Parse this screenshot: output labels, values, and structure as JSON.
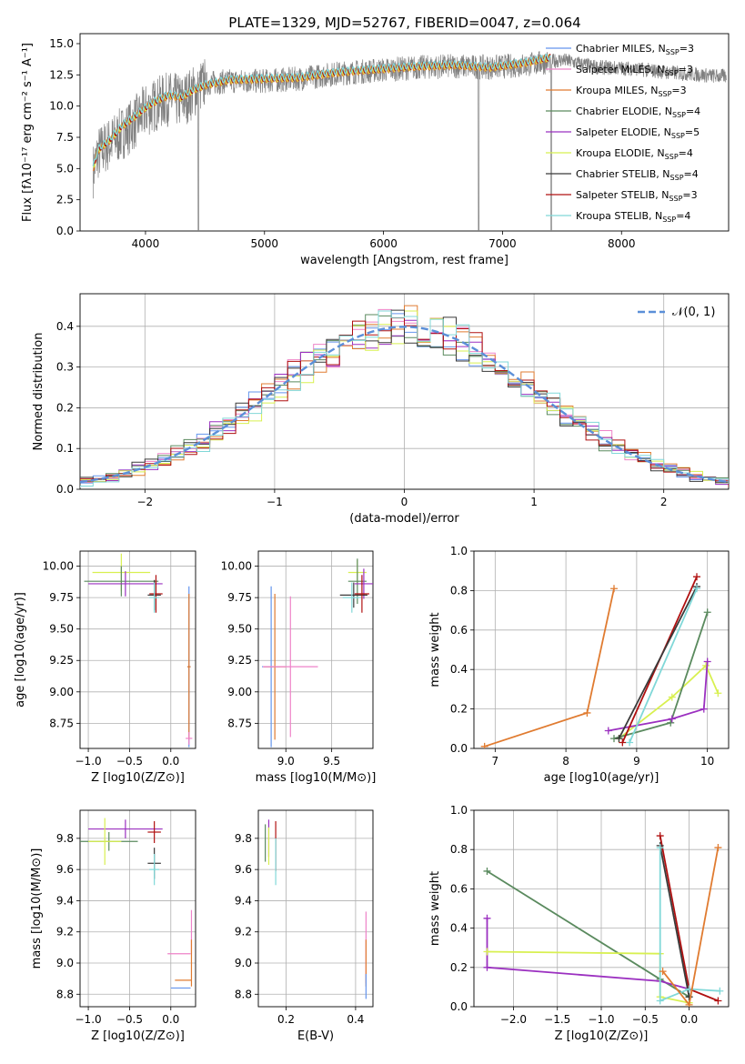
{
  "colors": {
    "Chabrier MILES": "#6495ed",
    "Salpeter MILES": "#ee82c8",
    "Kroupa MILES": "#e07b30",
    "Chabrier ELODIE": "#5a8a5e",
    "Salpeter ELODIE": "#9b30c0",
    "Kroupa ELODIE": "#d8f050",
    "Chabrier STELIB": "#3a3a3a",
    "Salpeter STELIB": "#b01010",
    "Kroupa STELIB": "#80d8d8"
  },
  "chart_data": [
    {
      "type": "line",
      "title": "PLATE=1329, MJD=52767, FIBERID=0047, z=0.064",
      "xlabel": "wavelength [Angstrom, rest frame]",
      "ylabel": "Flux [fλ10⁻¹⁷ erg cm⁻² s⁻¹ A⁻¹]",
      "xlim": [
        3450,
        8900
      ],
      "ylim": [
        0,
        15.8
      ],
      "xticks": [
        "4000",
        "5000",
        "6000",
        "7000",
        "8000"
      ],
      "yticks": [
        "0.0",
        "2.5",
        "5.0",
        "7.5",
        "10.0",
        "12.5",
        "15.0"
      ],
      "grid": false,
      "legend_position": "top-right",
      "legend": [
        {
          "label": "Chabrier MILES, N",
          "sub": "SSP",
          "tail": "=3",
          "color": "Chabrier MILES"
        },
        {
          "label": "Salpeter MILES, N",
          "sub": "SSP",
          "tail": "=3",
          "color": "Salpeter MILES"
        },
        {
          "label": "Kroupa MILES, N",
          "sub": "SSP",
          "tail": "=3",
          "color": "Kroupa MILES"
        },
        {
          "label": "Chabrier ELODIE, N",
          "sub": "SSP",
          "tail": "=4",
          "color": "Chabrier ELODIE"
        },
        {
          "label": "Salpeter ELODIE, N",
          "sub": "SSP",
          "tail": "=5",
          "color": "Salpeter ELODIE"
        },
        {
          "label": "Kroupa ELODIE, N",
          "sub": "SSP",
          "tail": "=4",
          "color": "Kroupa ELODIE"
        },
        {
          "label": "Chabrier STELIB, N",
          "sub": "SSP",
          "tail": "=4",
          "color": "Chabrier STELIB"
        },
        {
          "label": "Salpeter STELIB, N",
          "sub": "SSP",
          "tail": "=3",
          "color": "Salpeter STELIB"
        },
        {
          "label": "Kroupa STELIB, N",
          "sub": "SSP",
          "tail": "=4",
          "color": "Kroupa STELIB"
        }
      ],
      "data_trend": {
        "x": [
          3560,
          3600,
          3700,
          3800,
          3900,
          4000,
          4100,
          4200,
          4300,
          4400,
          4500,
          4700,
          5000,
          5300,
          5600,
          6000,
          6300,
          6600,
          6900,
          7200,
          7500,
          7800,
          8100,
          8400,
          8800
        ],
        "y": [
          4.8,
          6.2,
          7.0,
          7.8,
          8.6,
          9.6,
          10.2,
          10.6,
          10.4,
          11.1,
          11.8,
          12.0,
          12.0,
          12.2,
          12.6,
          12.9,
          13.1,
          13.2,
          13.1,
          13.3,
          13.7,
          13.1,
          13.0,
          12.7,
          12.4
        ]
      },
      "model_trend": {
        "x": [
          3560,
          3600,
          3700,
          3800,
          3900,
          4000,
          4100,
          4200,
          4300,
          4400,
          4500,
          4700,
          5000,
          5300,
          5600,
          6000,
          6300,
          6600,
          6900,
          7200,
          7400
        ],
        "y": [
          5.0,
          6.5,
          7.3,
          8.4,
          9.1,
          9.9,
          10.5,
          10.9,
          10.7,
          11.3,
          11.7,
          12.1,
          12.2,
          12.3,
          12.7,
          13.0,
          13.2,
          13.3,
          13.1,
          13.5,
          13.9
        ]
      }
    },
    {
      "type": "histogram",
      "xlabel": "(data-model)/error",
      "ylabel": "Normed distribution",
      "xlim": [
        -2.5,
        2.5
      ],
      "ylim": [
        0,
        0.48
      ],
      "xticks": [
        "−2",
        "−1",
        "0",
        "1",
        "2"
      ],
      "yticks": [
        "0.0",
        "0.1",
        "0.2",
        "0.3",
        "0.4"
      ],
      "grid": true,
      "legend_position": "top-right",
      "legend": [
        "𝒩(0, 1)"
      ],
      "bin_width": 0.1
    },
    {
      "type": "errorbar",
      "xlabel": "Z [log10(Z/Z⊙)]",
      "ylabel": "age  [log10(age/yr)]",
      "xlim": [
        -1.1,
        0.3
      ],
      "ylim": [
        8.55,
        10.12
      ],
      "xticks": [
        "−1.0",
        "−0.5",
        "0.0"
      ],
      "yticks": [
        "8.75",
        "9.00",
        "9.25",
        "9.50",
        "9.75",
        "10.00"
      ],
      "points": [
        {
          "m": "Kroupa ELODIE",
          "x": -0.6,
          "y": 9.95,
          "xe": 0.35,
          "ye": 0.15
        },
        {
          "m": "Chabrier ELODIE",
          "x": -0.6,
          "y": 9.88,
          "xe": 0.45,
          "ye": 0.12
        },
        {
          "m": "Salpeter ELODIE",
          "x": -0.55,
          "y": 9.86,
          "xe": 0.45,
          "ye": 0.1
        },
        {
          "m": "Chabrier STELIB",
          "x": -0.2,
          "y": 9.77,
          "xe": 0.08,
          "ye": 0.12
        },
        {
          "m": "Salpeter STELIB",
          "x": -0.18,
          "y": 9.78,
          "xe": 0.08,
          "ye": 0.15
        },
        {
          "m": "Kroupa STELIB",
          "x": -0.2,
          "y": 9.75,
          "xe": 0.06,
          "ye": 0.12
        },
        {
          "m": "Chabrier MILES",
          "x": 0.22,
          "y": 9.2,
          "xe": 0.02,
          "ye": 0.64
        },
        {
          "m": "Kroupa MILES",
          "x": 0.22,
          "y": 9.2,
          "xe": 0.02,
          "ye": 0.58
        },
        {
          "m": "Salpeter MILES",
          "x": 0.22,
          "y": 8.63,
          "xe": 0.04,
          "ye": 0.05
        }
      ]
    },
    {
      "type": "errorbar",
      "xlabel": "mass [log10(M/M⊙)]",
      "ylabel": "",
      "xlim": [
        8.7,
        9.95
      ],
      "ylim": [
        8.55,
        10.12
      ],
      "xticks": [
        "9.0",
        "9.5"
      ],
      "yticks": [
        "8.75",
        "9.00",
        "9.25",
        "9.50",
        "9.75",
        "10.00"
      ],
      "points": [
        {
          "m": "Kroupa ELODIE",
          "x": 9.78,
          "y": 9.95,
          "xe": 0.1,
          "ye": 0.1
        },
        {
          "m": "Chabrier ELODIE",
          "x": 9.78,
          "y": 9.88,
          "xe": 0.1,
          "ye": 0.18
        },
        {
          "m": "Salpeter ELODIE",
          "x": 9.85,
          "y": 9.86,
          "xe": 0.1,
          "ye": 0.12
        },
        {
          "m": "Chabrier STELIB",
          "x": 9.74,
          "y": 9.77,
          "xe": 0.15,
          "ye": 0.1
        },
        {
          "m": "Salpeter STELIB",
          "x": 9.83,
          "y": 9.78,
          "xe": 0.08,
          "ye": 0.15
        },
        {
          "m": "Kroupa STELIB",
          "x": 9.72,
          "y": 9.75,
          "xe": 0.1,
          "ye": 0.12
        },
        {
          "m": "Chabrier MILES",
          "x": 8.84,
          "y": 9.2,
          "xe": 0.1,
          "ye": 0.64
        },
        {
          "m": "Kroupa MILES",
          "x": 8.88,
          "y": 9.2,
          "xe": 0.12,
          "ye": 0.58
        },
        {
          "m": "Salpeter MILES",
          "x": 9.05,
          "y": 9.2,
          "xe": 0.3,
          "ye": 0.56
        }
      ]
    },
    {
      "type": "line",
      "xlabel": "age  [log10(age/yr)]",
      "ylabel": "mass weight",
      "xlim": [
        6.7,
        10.3
      ],
      "ylim": [
        0,
        1.0
      ],
      "xticks": [
        "7",
        "8",
        "9",
        "10"
      ],
      "yticks": [
        "0.0",
        "0.2",
        "0.4",
        "0.6",
        "0.8",
        "1.0"
      ],
      "series": [
        {
          "m": "Kroupa MILES",
          "x": [
            6.85,
            8.3,
            8.68
          ],
          "y": [
            0.01,
            0.18,
            0.81
          ]
        },
        {
          "m": "Kroupa ELODIE",
          "x": [
            8.75,
            9.5,
            9.98,
            10.15
          ],
          "y": [
            0.05,
            0.26,
            0.42,
            0.28
          ]
        },
        {
          "m": "Chabrier ELODIE",
          "x": [
            8.68,
            9.48,
            10.0
          ],
          "y": [
            0.05,
            0.13,
            0.69
          ]
        },
        {
          "m": "Salpeter ELODIE",
          "x": [
            8.6,
            9.5,
            9.95,
            10.0
          ],
          "y": [
            0.09,
            0.15,
            0.2,
            0.44
          ]
        },
        {
          "m": "Salpeter STELIB",
          "x": [
            8.8,
            9.85
          ],
          "y": [
            0.03,
            0.87
          ]
        },
        {
          "m": "Chabrier STELIB",
          "x": [
            8.75,
            9.85
          ],
          "y": [
            0.05,
            0.82
          ]
        },
        {
          "m": "Kroupa STELIB",
          "x": [
            8.9,
            9.85
          ],
          "y": [
            0.03,
            0.81
          ]
        }
      ]
    },
    {
      "type": "errorbar",
      "xlabel": "Z [log10(Z/Z⊙)]",
      "ylabel": "mass [log10(M/M⊙)]",
      "xlim": [
        -1.1,
        0.3
      ],
      "ylim": [
        8.72,
        9.98
      ],
      "xticks": [
        "−1.0",
        "−0.5",
        "0.0"
      ],
      "yticks": [
        "8.8",
        "9.0",
        "9.2",
        "9.4",
        "9.6",
        "9.8"
      ],
      "points": [
        {
          "m": "Salpeter ELODIE",
          "x": -0.55,
          "y": 9.86,
          "xe": 0.45,
          "ye": 0.06
        },
        {
          "m": "Chabrier ELODIE",
          "x": -0.75,
          "y": 9.78,
          "xe": 0.35,
          "ye": 0.06
        },
        {
          "m": "Kroupa ELODIE",
          "x": -0.8,
          "y": 9.78,
          "xe": 0.2,
          "ye": 0.15
        },
        {
          "m": "Salpeter STELIB",
          "x": -0.2,
          "y": 9.84,
          "xe": 0.08,
          "ye": 0.07
        },
        {
          "m": "Chabrier STELIB",
          "x": -0.2,
          "y": 9.64,
          "xe": 0.08,
          "ye": 0.1
        },
        {
          "m": "Kroupa STELIB",
          "x": -0.2,
          "y": 9.6,
          "xe": 0.06,
          "ye": 0.1
        },
        {
          "m": "Salpeter MILES",
          "x": 0.1,
          "y": 9.06,
          "xe": 0.14,
          "ye": 0.0
        },
        {
          "m": "Kroupa MILES",
          "x": 0.15,
          "y": 8.89,
          "xe": 0.1,
          "ye": 0.0
        },
        {
          "m": "Chabrier MILES",
          "x": 0.12,
          "y": 8.84,
          "xe": 0.12,
          "ye": 0.0
        },
        {
          "m": "Salpeter MILES",
          "x": 0.25,
          "y": 9.2,
          "xe": 0.0,
          "ye": 0.14
        },
        {
          "m": "Kroupa MILES",
          "x": 0.25,
          "y": 9.0,
          "xe": 0.0,
          "ye": 0.15
        }
      ]
    },
    {
      "type": "errorbar",
      "xlabel": "E(B-V)",
      "ylabel": "",
      "xlim": [
        0.12,
        0.45
      ],
      "ylim": [
        8.72,
        9.98
      ],
      "xticks": [
        "0.2",
        "0.4"
      ],
      "yticks": [
        "8.8",
        "9.0",
        "9.2",
        "9.4",
        "9.6",
        "9.8"
      ],
      "points": [
        {
          "m": "Salpeter ELODIE",
          "x": 0.15,
          "y": 9.8,
          "xe": 0.0,
          "ye": 0.12
        },
        {
          "m": "Chabrier ELODIE",
          "x": 0.14,
          "y": 9.77,
          "xe": 0.0,
          "ye": 0.12
        },
        {
          "m": "Kroupa ELODIE",
          "x": 0.15,
          "y": 9.75,
          "xe": 0.0,
          "ye": 0.12
        },
        {
          "m": "Salpeter STELIB",
          "x": 0.17,
          "y": 9.75,
          "xe": 0.0,
          "ye": 0.16
        },
        {
          "m": "Kroupa STELIB",
          "x": 0.17,
          "y": 9.65,
          "xe": 0.0,
          "ye": 0.15
        },
        {
          "m": "Salpeter MILES",
          "x": 0.43,
          "y": 9.1,
          "xe": 0.0,
          "ye": 0.23
        },
        {
          "m": "Kroupa MILES",
          "x": 0.43,
          "y": 9.0,
          "xe": 0.0,
          "ye": 0.15
        },
        {
          "m": "Chabrier MILES",
          "x": 0.43,
          "y": 8.85,
          "xe": 0.0,
          "ye": 0.08
        }
      ]
    },
    {
      "type": "line",
      "xlabel": "Z [log10(Z/Z⊙)]",
      "ylabel": "mass weight",
      "xlim": [
        -2.45,
        0.45
      ],
      "ylim": [
        0,
        1.0
      ],
      "xticks": [
        "−2.0",
        "−1.5",
        "−1.0",
        "−0.5",
        "0.0"
      ],
      "yticks": [
        "0.0",
        "0.2",
        "0.4",
        "0.6",
        "0.8",
        "1.0"
      ],
      "series": [
        {
          "m": "Chabrier ELODIE",
          "x": [
            -2.3,
            -0.33,
            0.0
          ],
          "y": [
            0.69,
            0.14,
            0.05
          ]
        },
        {
          "m": "Salpeter ELODIE",
          "x": [
            -2.3,
            -2.3,
            -0.33,
            0.0
          ],
          "y": [
            0.45,
            0.2,
            0.13,
            0.09
          ]
        },
        {
          "m": "Kroupa ELODIE",
          "x": [
            -2.3,
            -0.33,
            -0.33,
            0.0
          ],
          "y": [
            0.28,
            0.27,
            0.05,
            0.02
          ]
        },
        {
          "m": "Salpeter STELIB",
          "x": [
            -0.33,
            0.0,
            0.33
          ],
          "y": [
            0.87,
            0.09,
            0.03
          ]
        },
        {
          "m": "Chabrier STELIB",
          "x": [
            -0.33,
            0.0
          ],
          "y": [
            0.82,
            0.05
          ]
        },
        {
          "m": "Kroupa STELIB",
          "x": [
            -0.33,
            -0.33,
            0.0,
            0.35
          ],
          "y": [
            0.81,
            0.03,
            0.09,
            0.08
          ]
        },
        {
          "m": "Kroupa MILES",
          "x": [
            -0.3,
            0.0,
            0.33
          ],
          "y": [
            0.18,
            0.01,
            0.81
          ]
        }
      ]
    }
  ]
}
